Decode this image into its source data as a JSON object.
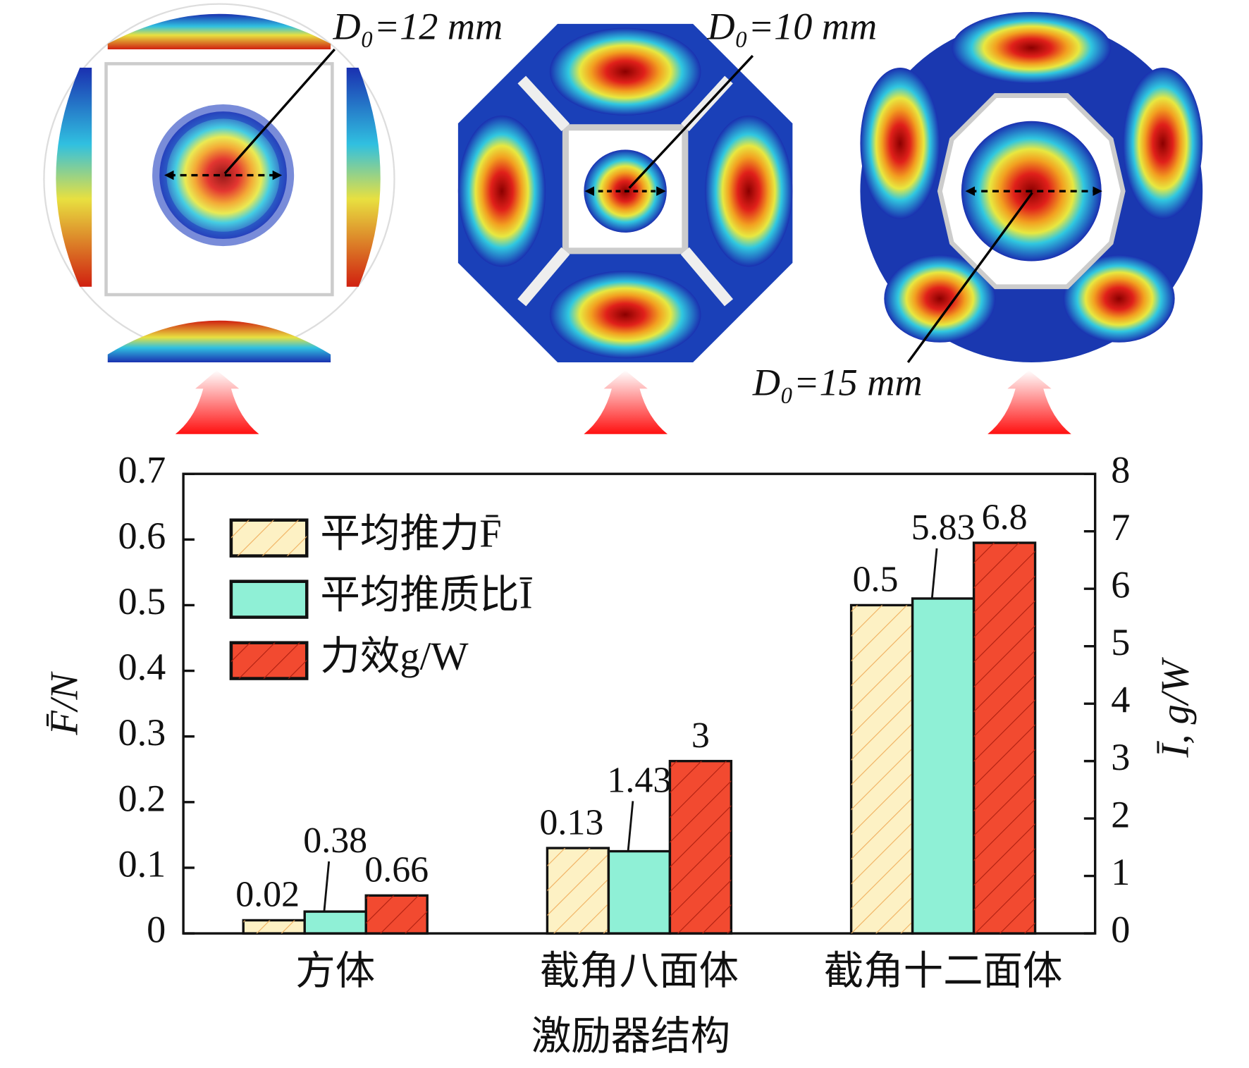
{
  "chart_data": {
    "type": "bar",
    "categories": [
      "方体",
      "截角八面体",
      "截角十二面体"
    ],
    "xlabel": "激励器结构",
    "ylabel": "F̄/N",
    "y2label": "Ī, g/W",
    "ylim": [
      0,
      0.7
    ],
    "yticks": [
      0,
      0.1,
      0.2,
      0.3,
      0.4,
      0.5,
      0.6,
      0.7
    ],
    "y2lim": [
      0,
      8
    ],
    "y2ticks": [
      0,
      1,
      2,
      3,
      4,
      5,
      6,
      7,
      8
    ],
    "series": [
      {
        "name": "平均推力F̄",
        "color": "#fdf1c4",
        "values": [
          0.02,
          0.13,
          0.5
        ]
      },
      {
        "name": "平均推质比Ī",
        "color": "#8ff0d6",
        "axis": "y2",
        "values": [
          0.38,
          1.43,
          5.83
        ]
      },
      {
        "name": "力效g/W",
        "color": "#f24a30",
        "axis": "y2",
        "values": [
          0.66,
          3,
          6.8
        ]
      }
    ],
    "annotations": [
      "D₀=12 mm",
      "D₀=10 mm",
      "D₀=15 mm"
    ]
  }
}
